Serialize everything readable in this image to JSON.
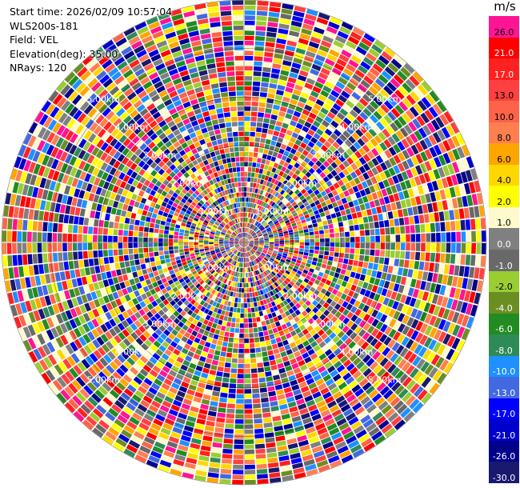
{
  "info": {
    "start_time": "Start time: 2026/02/09 10:57:04",
    "device": "WLS200s-181",
    "field": "Field: VEL",
    "elevation": "Elevation(deg): 35.00",
    "nrays": "NRays: 120"
  },
  "colorbar": {
    "unit": "m/s",
    "levels": [
      {
        "label": "26.0",
        "color": "#ff1493"
      },
      {
        "label": "21.0",
        "color": "#ff0000"
      },
      {
        "label": "17.0",
        "color": "#ff2020"
      },
      {
        "label": "13.0",
        "color": "#ff4040"
      },
      {
        "label": "10.0",
        "color": "#ff6347"
      },
      {
        "label": "8.0",
        "color": "#ff7f50"
      },
      {
        "label": "6.0",
        "color": "#ffa500"
      },
      {
        "label": "4.0",
        "color": "#ffd700"
      },
      {
        "label": "2.0",
        "color": "#ffff00"
      },
      {
        "label": "1.0",
        "color": "#fffacd"
      },
      {
        "label": "0.0",
        "color": "#808080"
      },
      {
        "label": "-1.0",
        "color": "#696969"
      },
      {
        "label": "-2.0",
        "color": "#9acd32"
      },
      {
        "label": "-4.0",
        "color": "#6b8e23"
      },
      {
        "label": "-6.0",
        "color": "#228b22"
      },
      {
        "label": "-8.0",
        "color": "#2e8b57"
      },
      {
        "label": "-10.0",
        "color": "#1e90ff"
      },
      {
        "label": "-13.0",
        "color": "#4169e1"
      },
      {
        "label": "-17.0",
        "color": "#0000ff"
      },
      {
        "label": "-21.0",
        "color": "#0000cd"
      },
      {
        "label": "-26.0",
        "color": "#00008b"
      },
      {
        "label": "-30.0",
        "color": "#191970"
      }
    ]
  },
  "plot": {
    "rays": 120,
    "gates": 48,
    "range_labels": [
      "1.00km",
      "2.00km",
      "3.00km",
      "4.00km",
      "5.00km"
    ]
  }
}
